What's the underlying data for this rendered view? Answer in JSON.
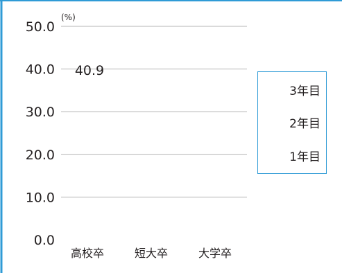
{
  "chart_data": {
    "type": "bar",
    "title": "",
    "xlabel": "",
    "ylabel": "(%)",
    "ylim": [
      0,
      50
    ],
    "yticks": [
      "0.0",
      "10.0",
      "20.0",
      "30.0",
      "40.0",
      "50.0"
    ],
    "categories": [
      "高校卒",
      "短大卒",
      "大学卒"
    ],
    "series": [
      {
        "name": "1年目",
        "values": [
          null,
          null,
          null
        ]
      },
      {
        "name": "2年目",
        "values": [
          null,
          null,
          null
        ]
      },
      {
        "name": "3年目",
        "values": [
          null,
          null,
          null
        ]
      }
    ],
    "annotations": [
      {
        "text": "40.9",
        "category": "高校卒",
        "value": 40.9
      }
    ],
    "legend_position": "right",
    "grid": true,
    "colors": {
      "frame": "#2f9bd6",
      "grid": "#b4b4b4",
      "text": "#231f20"
    }
  },
  "legend": {
    "items": [
      "3年目",
      "2年目",
      "1年目"
    ]
  }
}
